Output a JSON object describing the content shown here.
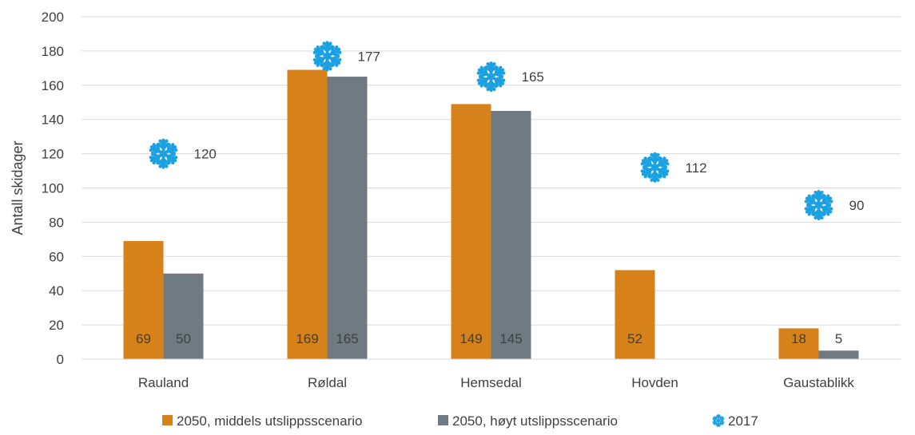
{
  "chart_data": {
    "type": "bar",
    "title": "",
    "xlabel": "",
    "ylabel": "Antall skidager",
    "ylim": [
      0,
      200
    ],
    "yticks": [
      0,
      20,
      40,
      60,
      80,
      100,
      120,
      140,
      160,
      180,
      200
    ],
    "grid": true,
    "legend_position": "bottom",
    "categories": [
      "Rauland",
      "Røldal",
      "Hemsedal",
      "Hovden",
      "Gaustablikk"
    ],
    "series": [
      {
        "name": "2050, middels utslippsscenario",
        "type": "bar",
        "color": "#D6811A",
        "values": [
          69,
          169,
          149,
          52,
          18
        ]
      },
      {
        "name": "2050, høyt utslippsscenario",
        "type": "bar",
        "color": "#6F7A82",
        "values": [
          50,
          165,
          145,
          0,
          5
        ]
      },
      {
        "name": "2017",
        "type": "marker",
        "marker": "snowflake-icon",
        "color": "#1BA1E2",
        "values": [
          120,
          177,
          165,
          112,
          90
        ]
      }
    ],
    "bar_labels": [
      [
        "69",
        "169",
        "149",
        "52",
        "18"
      ],
      [
        "50",
        "165",
        "145",
        "",
        "5"
      ]
    ]
  }
}
